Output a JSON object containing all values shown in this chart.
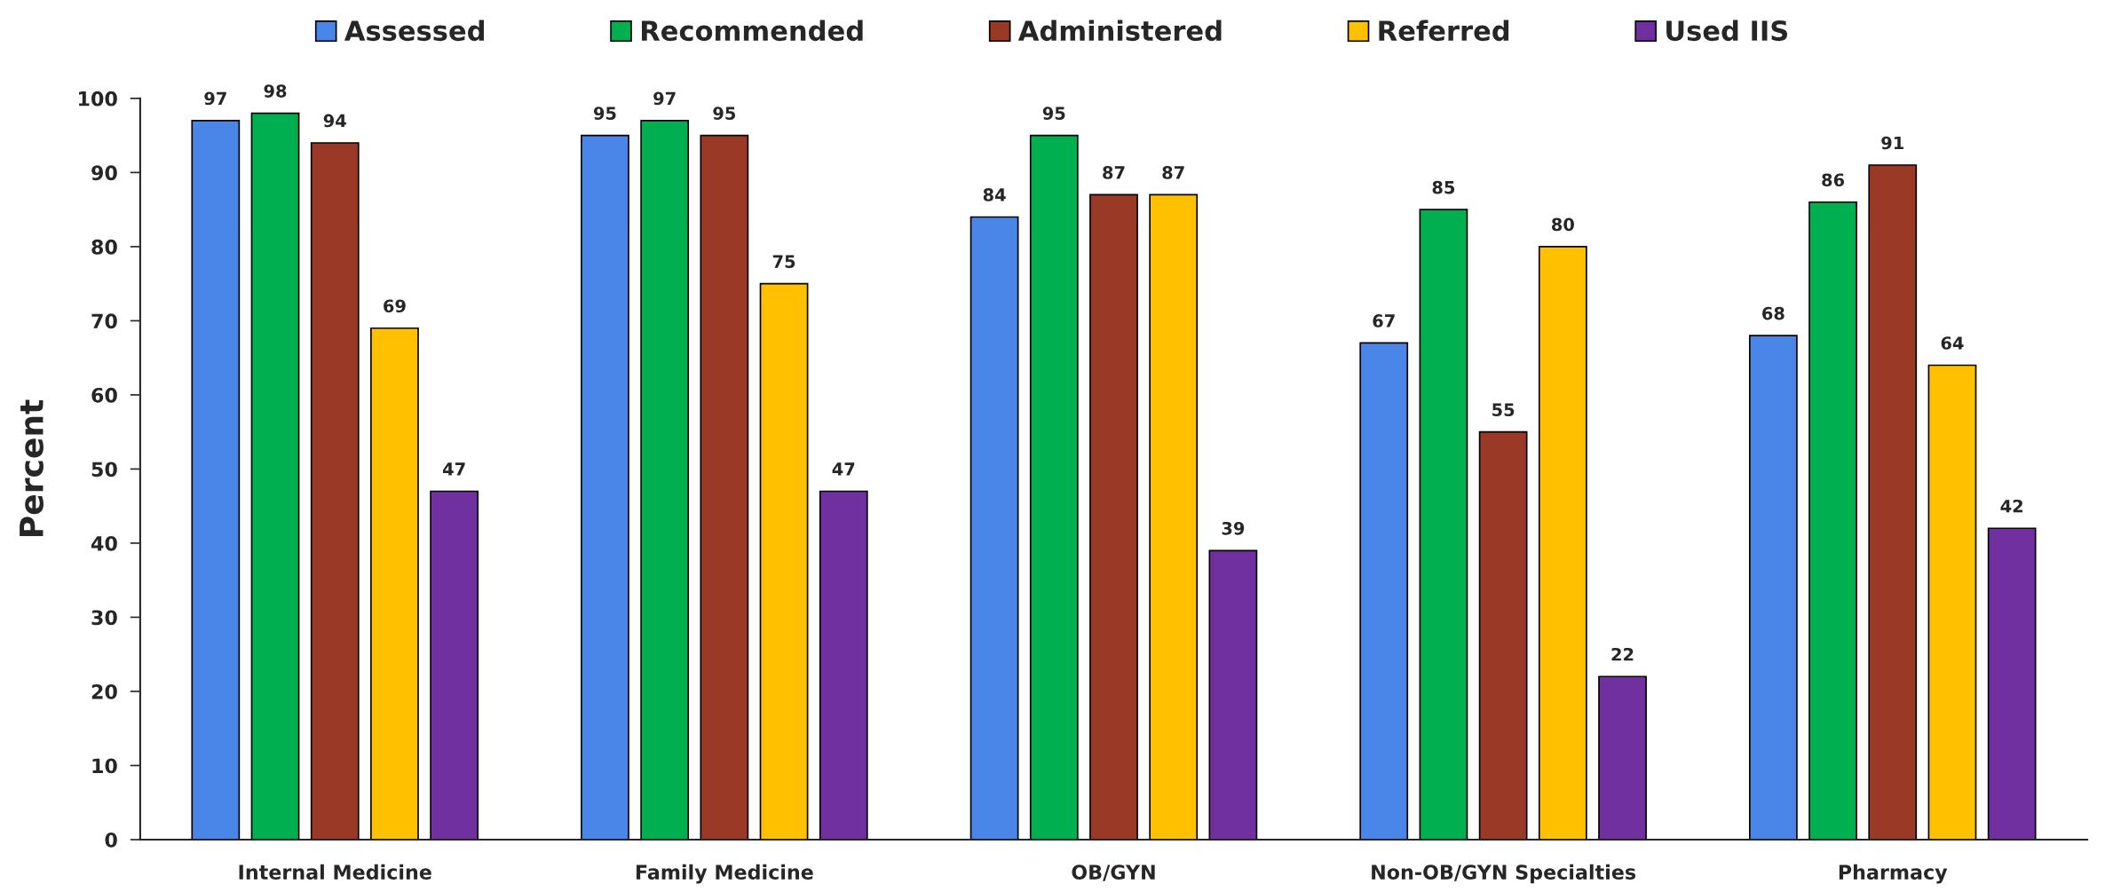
{
  "chart_data": {
    "type": "bar",
    "ylabel": "Percent",
    "categories": [
      "Internal Medicine",
      "Family Medicine",
      "OB/GYN",
      "Non-OB/GYN Specialties",
      "Pharmacy"
    ],
    "series": [
      {
        "name": "Assessed",
        "color": "#4a86e8",
        "values": [
          97,
          95,
          84,
          67,
          68
        ]
      },
      {
        "name": "Recommended",
        "color": "#00b050",
        "values": [
          98,
          97,
          95,
          85,
          86
        ]
      },
      {
        "name": "Administered",
        "color": "#9a3a26",
        "values": [
          94,
          95,
          87,
          55,
          91
        ]
      },
      {
        "name": "Referred",
        "color": "#ffc000",
        "values": [
          69,
          75,
          87,
          80,
          64
        ]
      },
      {
        "name": "Used IIS",
        "color": "#7030a0",
        "values": [
          47,
          47,
          39,
          22,
          42
        ]
      }
    ],
    "ylim": [
      0,
      100
    ],
    "yticks": [
      0,
      10,
      20,
      30,
      40,
      50,
      60,
      70,
      80,
      90,
      100
    ],
    "data_labels": true,
    "legend": "top",
    "grid": false
  }
}
